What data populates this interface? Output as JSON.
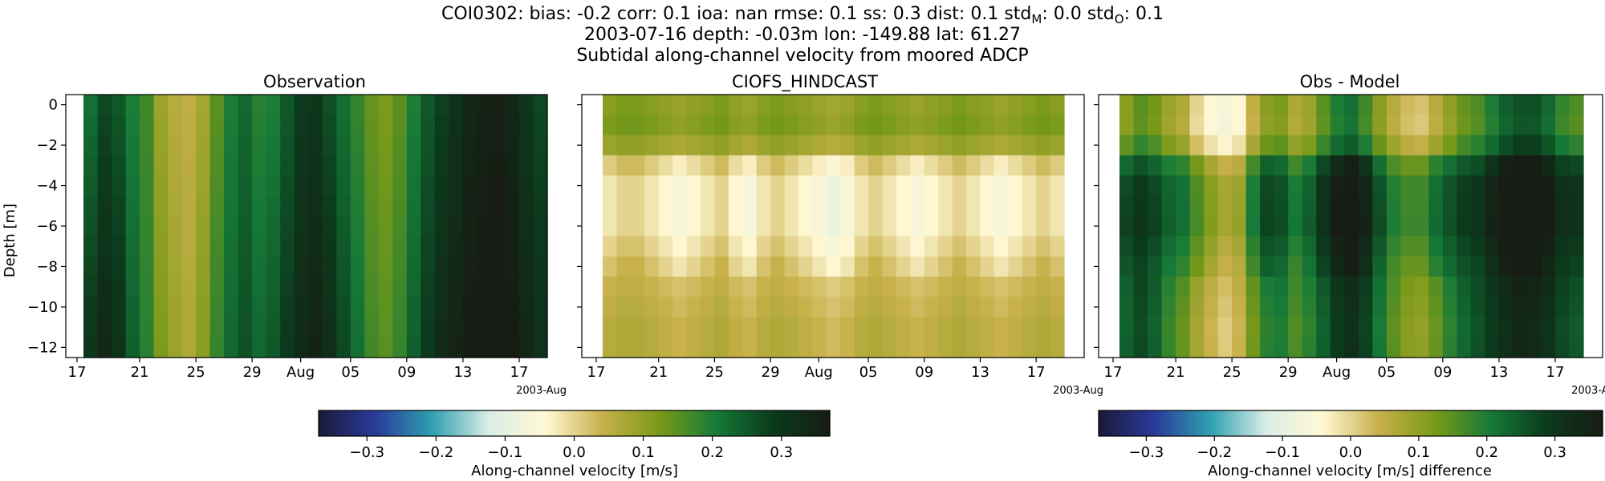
{
  "header": {
    "line1": "COI0302: bias: -0.2  corr: 0.1  ioa: nan  rmse: 0.1  ss: 0.3  dist: 0.1  std",
    "line1_sub_m": "M",
    "line1_mid": ": 0.0  std",
    "line1_sub_o": "O",
    "line1_end": ": 0.1",
    "line2": "2003-07-16 depth: -0.03m lon: -149.88 lat: 61.27",
    "line3": "Subtidal along-channel velocity from moored ADCP"
  },
  "chart_data": [
    {
      "type": "heatmap",
      "title": "Observation",
      "ylabel": "Depth [m]",
      "xlabel": "",
      "ylim": [
        -12.5,
        0.5
      ],
      "yticks": [
        "0",
        "−2",
        "−4",
        "−6",
        "−8",
        "−10",
        "−12"
      ],
      "xticks": [
        "17",
        "21",
        "25",
        "29",
        "Aug",
        "05",
        "09",
        "13",
        "17"
      ],
      "x_offset_label": "2003-Aug",
      "x_dates": [
        "2003-07-17",
        "2003-07-18",
        "2003-07-19",
        "2003-07-20",
        "2003-07-21",
        "2003-07-22",
        "2003-07-23",
        "2003-07-24",
        "2003-07-25",
        "2003-07-26",
        "2003-07-27",
        "2003-07-28",
        "2003-07-29",
        "2003-07-30",
        "2003-07-31",
        "2003-08-01",
        "2003-08-02",
        "2003-08-03",
        "2003-08-04",
        "2003-08-05",
        "2003-08-06",
        "2003-08-07",
        "2003-08-08",
        "2003-08-09",
        "2003-08-10",
        "2003-08-11",
        "2003-08-12",
        "2003-08-13",
        "2003-08-14",
        "2003-08-15",
        "2003-08-16",
        "2003-08-17",
        "2003-08-18"
      ],
      "depths": [
        0,
        -1,
        -2,
        -3,
        -4,
        -5,
        -6,
        -7,
        -8,
        -9,
        -10,
        -11,
        -12
      ],
      "values_by_time_surface": [
        0.22,
        0.27,
        0.25,
        0.2,
        0.17,
        0.09,
        0.06,
        0.05,
        0.08,
        0.15,
        0.2,
        0.23,
        0.19,
        0.2,
        0.25,
        0.29,
        0.3,
        0.26,
        0.22,
        0.18,
        0.14,
        0.12,
        0.15,
        0.2,
        0.25,
        0.28,
        0.31,
        0.34,
        0.35,
        0.36,
        0.34,
        0.3,
        0.27
      ],
      "values_by_time_bottom": [
        0.3,
        0.34,
        0.31,
        0.24,
        0.19,
        0.12,
        0.09,
        0.07,
        0.11,
        0.18,
        0.23,
        0.26,
        0.23,
        0.25,
        0.29,
        0.33,
        0.35,
        0.32,
        0.27,
        0.22,
        0.17,
        0.15,
        0.18,
        0.24,
        0.29,
        0.33,
        0.35,
        0.37,
        0.38,
        0.38,
        0.37,
        0.34,
        0.31
      ],
      "colorbar_label": "Along-channel velocity [m/s]",
      "clim": [
        -0.37,
        0.37
      ]
    },
    {
      "type": "heatmap",
      "title": "CIOFS_HINDCAST",
      "ylim": [
        -12.5,
        0.5
      ],
      "xticks": [
        "17",
        "21",
        "25",
        "29",
        "Aug",
        "05",
        "09",
        "13",
        "17"
      ],
      "x_offset_label": "2003-Aug",
      "depths": [
        0,
        -1,
        -2,
        -3,
        -4,
        -5,
        -6,
        -7,
        -8,
        -9,
        -10,
        -11,
        -12
      ],
      "depth_profile": [
        0.11,
        0.12,
        0.09,
        0.01,
        -0.02,
        -0.02,
        -0.02,
        0.0,
        0.02,
        0.04,
        0.05,
        0.06,
        0.06
      ],
      "time_variation": [
        0.0,
        0.01,
        0.01,
        0.0,
        -0.01,
        -0.02,
        -0.01,
        0.0,
        0.01,
        -0.01,
        -0.02,
        0.0,
        0.01,
        0.0,
        -0.01,
        -0.02,
        -0.03,
        -0.02,
        0.0,
        0.01,
        0.0,
        -0.01,
        -0.02,
        -0.01,
        0.0,
        0.01,
        0.0,
        -0.01,
        -0.02,
        -0.01,
        0.0,
        0.01,
        0.0
      ],
      "clim": [
        -0.37,
        0.37
      ]
    },
    {
      "type": "heatmap",
      "title": "Obs - Model",
      "ylim": [
        -12.5,
        0.5
      ],
      "xticks": [
        "17",
        "21",
        "25",
        "29",
        "Aug",
        "05",
        "09",
        "13",
        "17"
      ],
      "x_offset_label": "2003-Aug",
      "depths": [
        0,
        -1,
        -2,
        -3,
        -4,
        -5,
        -6,
        -7,
        -8,
        -9,
        -10,
        -11,
        -12
      ],
      "note_values": "difference = observation minus model",
      "colorbar_label": "Along-channel velocity [m/s] difference",
      "clim": [
        -0.37,
        0.37
      ]
    }
  ],
  "colorbars": [
    {
      "ticks": [
        "−0.3",
        "−0.2",
        "−0.1",
        "0.0",
        "0.1",
        "0.2",
        "0.3"
      ],
      "tick_values": [
        -0.3,
        -0.2,
        -0.1,
        0.0,
        0.1,
        0.2,
        0.3
      ],
      "label": "Along-channel velocity [m/s]"
    },
    {
      "ticks": [
        "−0.3",
        "−0.2",
        "−0.1",
        "0.0",
        "0.1",
        "0.2",
        "0.3"
      ],
      "tick_values": [
        -0.3,
        -0.2,
        -0.1,
        0.0,
        0.1,
        0.2,
        0.3
      ],
      "label": "Along-channel velocity [m/s] difference"
    }
  ],
  "colormap": {
    "name": "delta-like diverging",
    "stops": [
      "#1a1a37",
      "#2a3a9a",
      "#2fa0b0",
      "#dbeee6",
      "#fff8d4",
      "#c8b04a",
      "#7a9a18",
      "#167a38",
      "#0b3a1c",
      "#171c14"
    ]
  }
}
